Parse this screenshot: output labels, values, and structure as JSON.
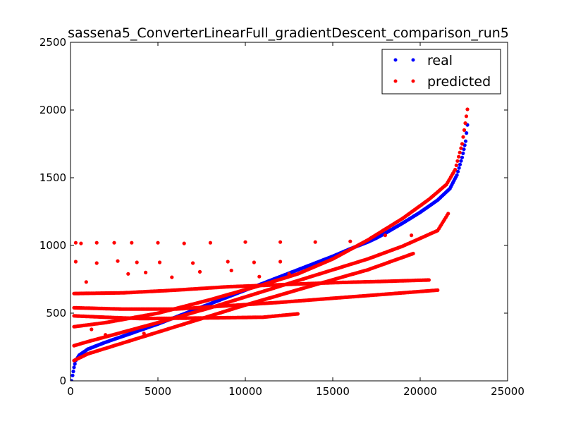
{
  "chart_data": {
    "type": "scatter",
    "title": "sassena5_ConverterLinearFull_gradientDescent_comparison_run5",
    "xlabel": "",
    "ylabel": "",
    "xlim": [
      0,
      25000
    ],
    "ylim": [
      0,
      2500
    ],
    "x_ticks": [
      0,
      5000,
      10000,
      15000,
      20000,
      25000
    ],
    "y_ticks": [
      0,
      500,
      1000,
      1500,
      2000,
      2500
    ],
    "grid": false,
    "legend_position": "top-right",
    "series": [
      {
        "name": "real",
        "color": "#0000ff",
        "points": [
          [
            60,
            0
          ],
          [
            120,
            40
          ],
          [
            200,
            100
          ],
          [
            300,
            150
          ],
          [
            500,
            190
          ],
          [
            1000,
            235
          ],
          [
            2000,
            285
          ],
          [
            3000,
            330
          ],
          [
            4000,
            375
          ],
          [
            5000,
            420
          ],
          [
            6000,
            470
          ],
          [
            7000,
            520
          ],
          [
            8000,
            570
          ],
          [
            9000,
            620
          ],
          [
            10000,
            670
          ],
          [
            11000,
            720
          ],
          [
            12000,
            770
          ],
          [
            13000,
            820
          ],
          [
            14000,
            870
          ],
          [
            15000,
            920
          ],
          [
            16000,
            975
          ],
          [
            17000,
            1025
          ],
          [
            17500,
            1055
          ],
          [
            18000,
            1090
          ],
          [
            19000,
            1165
          ],
          [
            20000,
            1245
          ],
          [
            21000,
            1335
          ],
          [
            21700,
            1420
          ],
          [
            22100,
            1520
          ],
          [
            22400,
            1650
          ],
          [
            22600,
            1770
          ],
          [
            22700,
            1890
          ]
        ]
      },
      {
        "name": "predicted",
        "color": "#ff0000",
        "lines": [
          [
            [
              200,
              150
            ],
            [
              1000,
              200
            ],
            [
              3000,
              280
            ],
            [
              6000,
              400
            ],
            [
              10000,
              560
            ],
            [
              14000,
              710
            ],
            [
              17000,
              820
            ],
            [
              19600,
              940
            ]
          ],
          [
            [
              200,
              260
            ],
            [
              1000,
              290
            ],
            [
              3000,
              360
            ],
            [
              5000,
              430
            ],
            [
              8000,
              540
            ],
            [
              11000,
              660
            ],
            [
              14000,
              780
            ],
            [
              17000,
              900
            ],
            [
              19000,
              995
            ],
            [
              21000,
              1110
            ],
            [
              21600,
              1235
            ]
          ],
          [
            [
              200,
              400
            ],
            [
              2000,
              430
            ],
            [
              5000,
              500
            ],
            [
              8000,
              600
            ],
            [
              11000,
              710
            ],
            [
              13000,
              790
            ],
            [
              15000,
              900
            ],
            [
              17000,
              1040
            ],
            [
              19000,
              1200
            ],
            [
              20500,
              1340
            ],
            [
              21500,
              1450
            ],
            [
              22000,
              1560
            ],
            [
              22400,
              1750
            ],
            [
              22700,
              2005
            ]
          ],
          [
            [
              200,
              540
            ],
            [
              3000,
              530
            ],
            [
              6000,
              530
            ],
            [
              9000,
              555
            ],
            [
              12000,
              580
            ],
            [
              15000,
              610
            ],
            [
              18000,
              640
            ],
            [
              21000,
              670
            ]
          ],
          [
            [
              200,
              645
            ],
            [
              3000,
              650
            ],
            [
              6000,
              670
            ],
            [
              9000,
              695
            ],
            [
              12000,
              710
            ],
            [
              15000,
              725
            ],
            [
              18000,
              735
            ],
            [
              20500,
              745
            ]
          ],
          [
            [
              200,
              480
            ],
            [
              2000,
              470
            ],
            [
              4000,
              460
            ],
            [
              8000,
              465
            ],
            [
              11000,
              470
            ],
            [
              13000,
              495
            ]
          ]
        ],
        "scatter": [
          [
            300,
            1020
          ],
          [
            600,
            1015
          ],
          [
            1500,
            1020
          ],
          [
            2500,
            1020
          ],
          [
            3500,
            1020
          ],
          [
            5000,
            1020
          ],
          [
            6500,
            1015
          ],
          [
            8000,
            1020
          ],
          [
            10000,
            1025
          ],
          [
            12000,
            1025
          ],
          [
            14000,
            1025
          ],
          [
            16000,
            1030
          ],
          [
            18000,
            1075
          ],
          [
            19500,
            1075
          ],
          [
            300,
            880
          ],
          [
            1500,
            870
          ],
          [
            2700,
            885
          ],
          [
            3800,
            875
          ],
          [
            5100,
            875
          ],
          [
            7000,
            870
          ],
          [
            9000,
            880
          ],
          [
            10500,
            875
          ],
          [
            12000,
            880
          ],
          [
            900,
            730
          ],
          [
            3300,
            790
          ],
          [
            4300,
            800
          ],
          [
            5800,
            765
          ],
          [
            7400,
            805
          ],
          [
            9200,
            815
          ],
          [
            10800,
            770
          ],
          [
            12500,
            790
          ],
          [
            1200,
            380
          ],
          [
            2000,
            340
          ],
          [
            4200,
            350
          ]
        ]
      }
    ]
  }
}
